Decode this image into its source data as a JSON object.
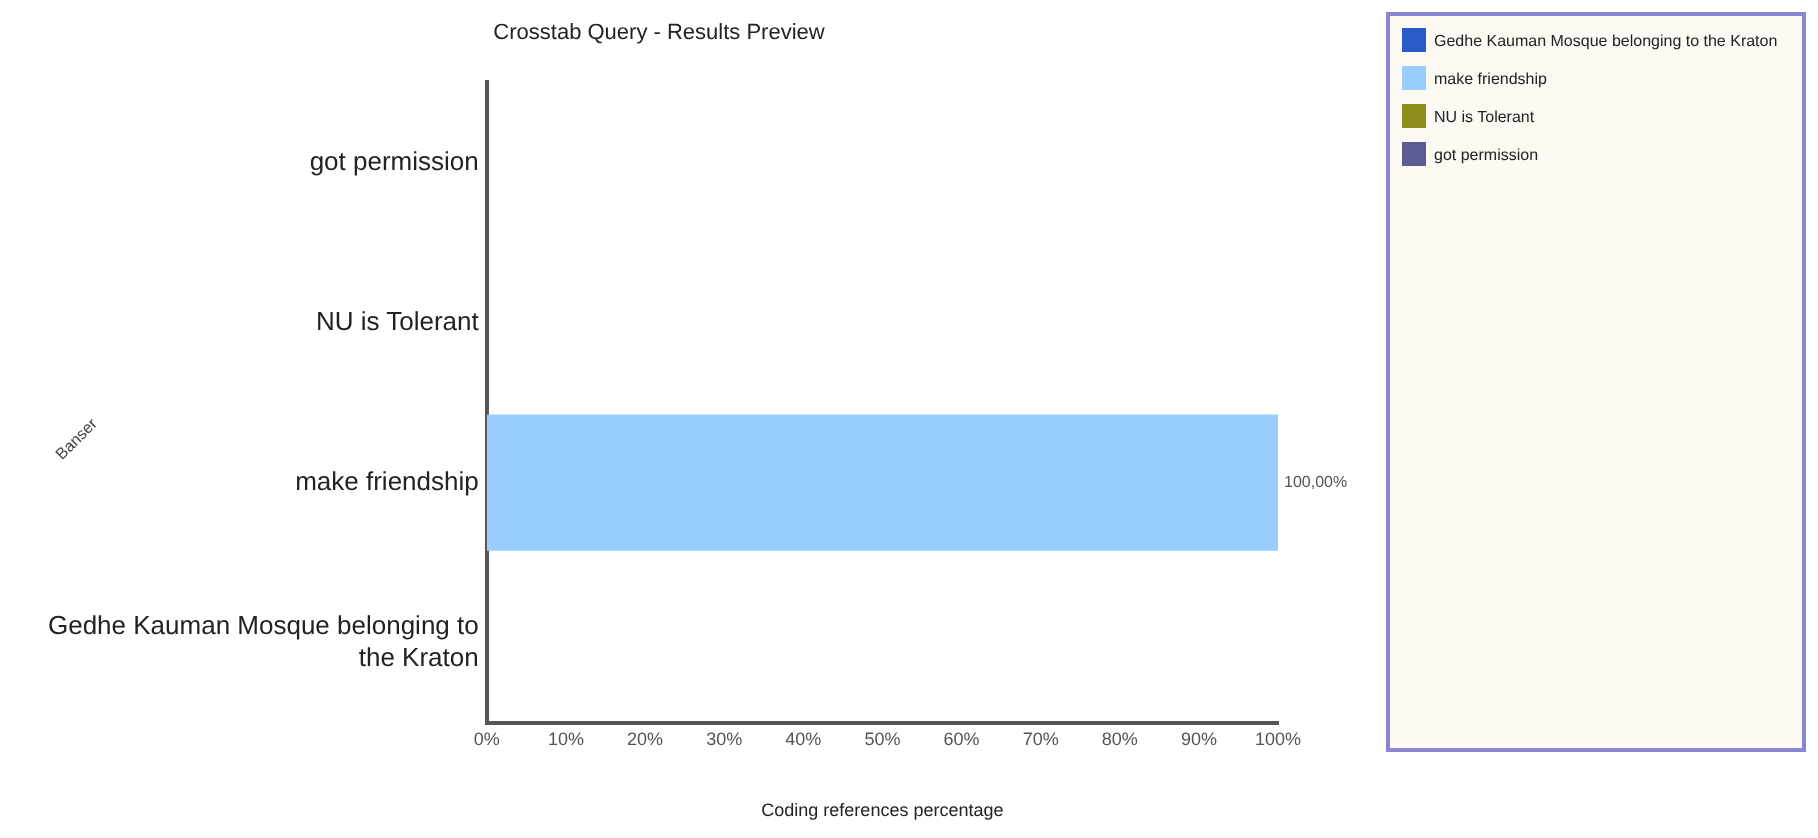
{
  "chart_data": {
    "type": "bar",
    "orientation": "horizontal",
    "stacked": true,
    "title": "Crosstab Query - Results Preview",
    "xlabel": "Coding references percentage",
    "ylabel": "Banser",
    "categories": [
      "got permission",
      "NU is Tolerant",
      "make friendship",
      "Gedhe Kauman Mosque belonging to the Kraton"
    ],
    "series": [
      {
        "name": "Gedhe Kauman Mosque belonging to the Kraton",
        "color": "#2a5bc8",
        "values": [
          null,
          null,
          null,
          0
        ]
      },
      {
        "name": "make friendship",
        "color": "#99ccff",
        "values": [
          null,
          null,
          100,
          null
        ],
        "value_labels": [
          null,
          null,
          "100,00%",
          null
        ]
      },
      {
        "name": "NU is Tolerant",
        "color": "#8f8f1f",
        "values": [
          null,
          0,
          null,
          null
        ]
      },
      {
        "name": "got permission",
        "color": "#5c5c94",
        "values": [
          0,
          null,
          null,
          null
        ]
      }
    ],
    "xlim": [
      0,
      100
    ],
    "xticks": [
      {
        "value": 0,
        "label": "0%"
      },
      {
        "value": 10,
        "label": "10%"
      },
      {
        "value": 20,
        "label": "20%"
      },
      {
        "value": 30,
        "label": "30%"
      },
      {
        "value": 40,
        "label": "40%"
      },
      {
        "value": 50,
        "label": "50%"
      },
      {
        "value": 60,
        "label": "60%"
      },
      {
        "value": 70,
        "label": "70%"
      },
      {
        "value": 80,
        "label": "80%"
      },
      {
        "value": 90,
        "label": "90%"
      },
      {
        "value": 100,
        "label": "100%"
      }
    ],
    "grid": false,
    "legend": "right"
  }
}
